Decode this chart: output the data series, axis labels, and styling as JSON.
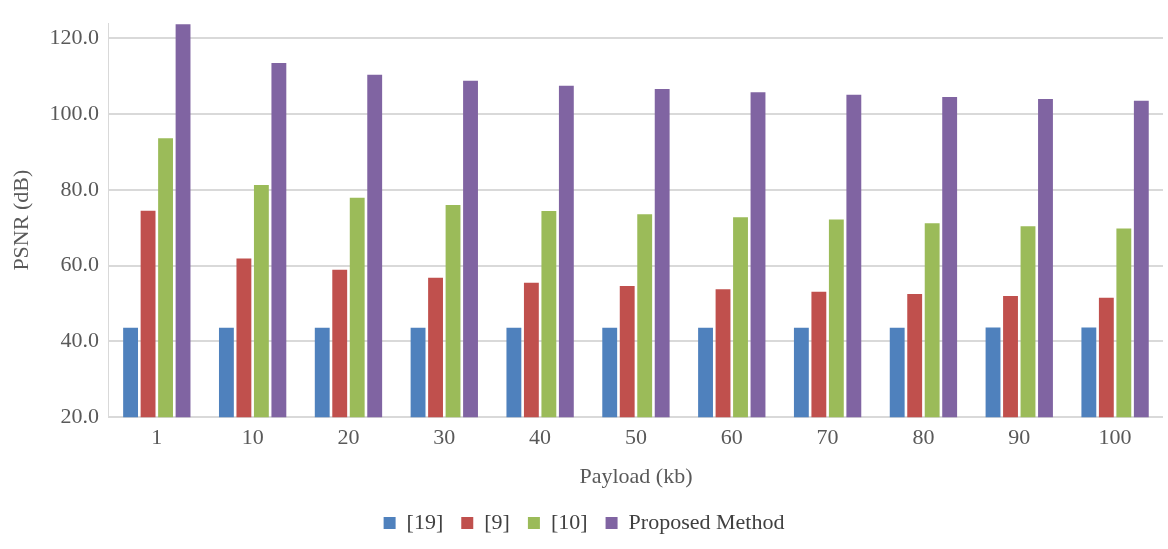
{
  "chart_data": {
    "type": "bar",
    "xlabel": "Payload (kb)",
    "ylabel": "PSNR (dB)",
    "categories": [
      "1",
      "10",
      "20",
      "30",
      "40",
      "50",
      "60",
      "70",
      "80",
      "90",
      "100"
    ],
    "series": [
      {
        "name": "[19]",
        "color": "#4f81bd",
        "values": [
          43.6,
          43.6,
          43.6,
          43.6,
          43.6,
          43.6,
          43.6,
          43.6,
          43.6,
          43.7,
          43.7
        ]
      },
      {
        "name": "[9]",
        "color": "#c0504d",
        "values": [
          74.5,
          61.9,
          58.9,
          56.8,
          55.5,
          54.6,
          53.8,
          53.1,
          52.5,
          52.0,
          51.5
        ]
      },
      {
        "name": "[10]",
        "color": "#9bbb59",
        "values": [
          93.6,
          81.3,
          77.9,
          76.0,
          74.4,
          73.6,
          72.8,
          72.2,
          71.2,
          70.4,
          69.8
        ]
      },
      {
        "name": "Proposed Method",
        "color": "#8064a2",
        "values": [
          123.7,
          113.5,
          110.4,
          108.8,
          107.5,
          106.6,
          105.8,
          105.1,
          104.5,
          104.0,
          103.5
        ]
      }
    ],
    "ylim": [
      20,
      124
    ],
    "yticks": [
      {
        "value": 20,
        "label": "20.0"
      },
      {
        "value": 40,
        "label": "40.0"
      },
      {
        "value": 60,
        "label": "60.0"
      },
      {
        "value": 80,
        "label": "80.0"
      },
      {
        "value": 100,
        "label": "100.0"
      },
      {
        "value": 120,
        "label": "120.0"
      }
    ],
    "grid": "y",
    "legend": "bottom"
  }
}
